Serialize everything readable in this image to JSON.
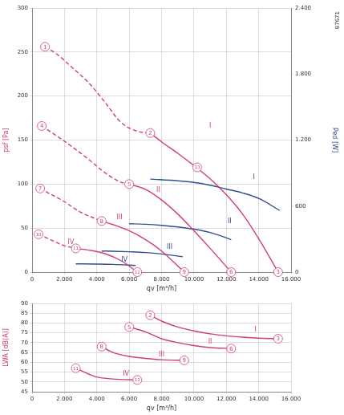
{
  "chart_data": [
    {
      "type": "line",
      "x_label": "qv [m³/h]",
      "y_label": "psf [Pa]",
      "y2_label": "Ped [W]",
      "annotations": [
        "87671"
      ],
      "xlim": [
        0,
        16000
      ],
      "xticks": [
        0,
        {
          "value": 2000,
          "label": "2.000"
        },
        {
          "value": 4000,
          "label": "4.000"
        },
        {
          "value": 6000,
          "label": "6.000"
        },
        {
          "value": 8000,
          "label": "8.000"
        },
        {
          "value": 10000,
          "label": "10.000"
        },
        {
          "value": 12000,
          "label": "12.000"
        },
        {
          "value": 14000,
          "label": "14.000"
        },
        {
          "value": 16000,
          "label": "16.000"
        }
      ],
      "ylim": [
        0,
        300
      ],
      "yticks": [
        0,
        50,
        100,
        150,
        200,
        250,
        300
      ],
      "y2lim": [
        0,
        2400
      ],
      "y2ticks": [
        0,
        600,
        {
          "value": 1200,
          "label": "1.200"
        },
        {
          "value": 1800,
          "label": "1.800"
        },
        {
          "value": 2400,
          "label": "2.400"
        }
      ],
      "grid": true,
      "series": [
        {
          "name": "I",
          "color": "#d23c77",
          "line_style": "dashed",
          "x": [
            800,
            1500,
            2500,
            3500,
            4500,
            5500,
            6500,
            7300
          ],
          "values": [
            256,
            248,
            232,
            215,
            193,
            170,
            160,
            158
          ]
        },
        {
          "name": "I",
          "color": "#d23c77",
          "line_style": "solid",
          "x": [
            7300,
            8000,
            9000,
            10000,
            11000,
            12000,
            13000,
            14000,
            15200
          ],
          "values": [
            158,
            148,
            135,
            121,
            106,
            88,
            66,
            38,
            0
          ]
        },
        {
          "name": "II",
          "color": "#d23c77",
          "line_style": "dashed",
          "x": [
            600,
            1500,
            2500,
            3500,
            4500,
            5500,
            6000
          ],
          "values": [
            166,
            155,
            142,
            128,
            113,
            102,
            100
          ]
        },
        {
          "name": "II",
          "color": "#d23c77",
          "line_style": "solid",
          "x": [
            6000,
            7000,
            8000,
            9000,
            10000,
            11000,
            12300
          ],
          "values": [
            100,
            94,
            82,
            66,
            47,
            27,
            0
          ]
        },
        {
          "name": "III",
          "color": "#d23c77",
          "line_style": "dashed",
          "x": [
            500,
            1000,
            2000,
            3000,
            4300
          ],
          "values": [
            95,
            90,
            80,
            68,
            58
          ]
        },
        {
          "name": "III",
          "color": "#d23c77",
          "line_style": "solid",
          "x": [
            4300,
            5000,
            6000,
            7000,
            8000,
            9400
          ],
          "values": [
            58,
            54,
            47,
            37,
            24,
            0
          ]
        },
        {
          "name": "IV",
          "color": "#d23c77",
          "line_style": "dashed",
          "x": [
            400,
            1000,
            2000,
            2700
          ],
          "values": [
            43,
            38,
            30,
            27
          ]
        },
        {
          "name": "IV",
          "color": "#d23c77",
          "line_style": "solid",
          "x": [
            2700,
            3500,
            4500,
            5500,
            6500
          ],
          "values": [
            27,
            25,
            21,
            13,
            0
          ]
        },
        {
          "name": "I",
          "color": "#2f4f8f",
          "line_style": "solid",
          "axis": "y2",
          "x": [
            7300,
            9000,
            10000,
            11000,
            12000,
            13000,
            14000,
            15300
          ],
          "values": [
            845,
            830,
            815,
            790,
            755,
            720,
            670,
            560
          ]
        },
        {
          "name": "II",
          "color": "#2f4f8f",
          "line_style": "solid",
          "axis": "y2",
          "x": [
            6000,
            7000,
            8000,
            9000,
            10000,
            11000,
            12300
          ],
          "values": [
            440,
            435,
            425,
            410,
            390,
            360,
            295
          ]
        },
        {
          "name": "III",
          "color": "#2f4f8f",
          "line_style": "solid",
          "axis": "y2",
          "x": [
            4300,
            5000,
            6000,
            7000,
            8000,
            9300
          ],
          "values": [
            192,
            190,
            185,
            178,
            165,
            140
          ]
        },
        {
          "name": "IV",
          "color": "#2f4f8f",
          "line_style": "solid",
          "axis": "y2",
          "x": [
            2700,
            4000,
            5000,
            6400
          ],
          "values": [
            75,
            73,
            70,
            60
          ]
        }
      ],
      "curve_labels": [
        {
          "text": "I",
          "x": 11000,
          "y": 166,
          "color": "#d23c77"
        },
        {
          "text": "II",
          "x": 7800,
          "y": 93,
          "color": "#d23c77"
        },
        {
          "text": "III",
          "x": 5400,
          "y": 62,
          "color": "#d23c77"
        },
        {
          "text": "IV",
          "x": 2400,
          "y": 34,
          "color": "#d23c77"
        },
        {
          "text": "I",
          "x": 13700,
          "y": 860,
          "axis": "y2",
          "color": "#2f4f8f"
        },
        {
          "text": "II",
          "x": 12200,
          "y": 460,
          "axis": "y2",
          "color": "#2f4f8f"
        },
        {
          "text": "III",
          "x": 8500,
          "y": 225,
          "axis": "y2",
          "color": "#2f4f8f"
        },
        {
          "text": "IV",
          "x": 5700,
          "y": 110,
          "axis": "y2",
          "color": "#2f4f8f"
        }
      ],
      "markers": [
        {
          "label": "1",
          "x": 800,
          "y": 256
        },
        {
          "label": "2",
          "x": 7300,
          "y": 158
        },
        {
          "label": "3",
          "x": 15200,
          "y": 0
        },
        {
          "label": "4",
          "x": 600,
          "y": 166
        },
        {
          "label": "5",
          "x": 6000,
          "y": 100
        },
        {
          "label": "6",
          "x": 12300,
          "y": 0
        },
        {
          "label": "7",
          "x": 500,
          "y": 95
        },
        {
          "label": "8",
          "x": 4300,
          "y": 58
        },
        {
          "label": "9",
          "x": 9400,
          "y": 0
        },
        {
          "label": "10",
          "x": 400,
          "y": 43
        },
        {
          "label": "11",
          "x": 2700,
          "y": 27
        },
        {
          "label": "12",
          "x": 6500,
          "y": 0
        },
        {
          "label": "13",
          "x": 10200,
          "y": 119
        }
      ]
    },
    {
      "type": "line",
      "x_label": "qv [m³/h]",
      "y_label": "LWA [dB(A)]",
      "xlim": [
        0,
        16000
      ],
      "xticks": [
        0,
        {
          "value": 2000,
          "label": "2.000"
        },
        {
          "value": 4000,
          "label": "4.000"
        },
        {
          "value": 6000,
          "label": "6.000"
        },
        {
          "value": 8000,
          "label": "8.000"
        },
        {
          "value": 10000,
          "label": "10.000"
        },
        {
          "value": 12000,
          "label": "12.000"
        },
        {
          "value": 14000,
          "label": "14.000"
        },
        {
          "value": 16000,
          "label": "16.000"
        }
      ],
      "ylim": [
        45,
        90
      ],
      "yticks": [
        45,
        50,
        55,
        60,
        65,
        70,
        75,
        80,
        85,
        90
      ],
      "grid": true,
      "series": [
        {
          "name": "I",
          "color": "#d23c77",
          "line_style": "solid",
          "x": [
            7300,
            8000,
            9000,
            10000,
            11000,
            12000,
            13000,
            14000,
            15200
          ],
          "values": [
            84,
            81,
            78,
            76,
            74.5,
            73.5,
            72.8,
            72.3,
            72
          ]
        },
        {
          "name": "II",
          "color": "#d23c77",
          "line_style": "solid",
          "x": [
            6000,
            7000,
            8000,
            9000,
            10000,
            11000,
            12300
          ],
          "values": [
            78,
            75.5,
            72,
            70,
            68.5,
            67.5,
            67
          ]
        },
        {
          "name": "III",
          "color": "#d23c77",
          "line_style": "solid",
          "x": [
            4300,
            5000,
            6000,
            7000,
            8000,
            9400
          ],
          "values": [
            68,
            65,
            63,
            62,
            61.3,
            61
          ]
        },
        {
          "name": "IV",
          "color": "#d23c77",
          "line_style": "solid",
          "x": [
            2700,
            3500,
            4000,
            5000,
            6500
          ],
          "values": [
            57,
            54,
            52.5,
            51.5,
            51
          ]
        }
      ],
      "curve_labels": [
        {
          "text": "I",
          "x": 13800,
          "y": 76.5,
          "color": "#d23c77"
        },
        {
          "text": "II",
          "x": 11000,
          "y": 70.5,
          "color": "#d23c77"
        },
        {
          "text": "III",
          "x": 8000,
          "y": 64,
          "color": "#d23c77"
        },
        {
          "text": "IV",
          "x": 5800,
          "y": 54,
          "color": "#d23c77"
        }
      ],
      "markers": [
        {
          "label": "2",
          "x": 7300,
          "y": 84
        },
        {
          "label": "3",
          "x": 15200,
          "y": 72
        },
        {
          "label": "5",
          "x": 6000,
          "y": 78
        },
        {
          "label": "6",
          "x": 12300,
          "y": 67
        },
        {
          "label": "8",
          "x": 4300,
          "y": 68
        },
        {
          "label": "9",
          "x": 9400,
          "y": 61
        },
        {
          "label": "11",
          "x": 2700,
          "y": 57
        },
        {
          "label": "12",
          "x": 6500,
          "y": 51
        }
      ]
    }
  ]
}
